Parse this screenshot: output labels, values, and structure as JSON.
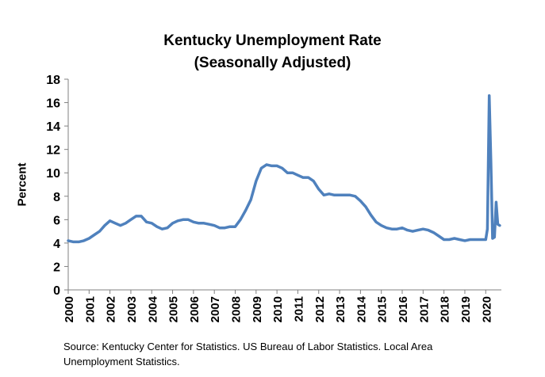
{
  "chart_data": {
    "type": "line",
    "title": [
      "Kentucky Unemployment Rate",
      "(Seasonally Adjusted)"
    ],
    "xlabel": "",
    "ylabel": "Percent",
    "xlim": [
      2000,
      2020.75
    ],
    "ylim": [
      0,
      18
    ],
    "yticks": [
      0,
      2,
      4,
      6,
      8,
      10,
      12,
      14,
      16,
      18
    ],
    "xticks": [
      "2000",
      "2001",
      "2002",
      "2003",
      "2004",
      "2005",
      "2006",
      "2007",
      "2008",
      "2009",
      "2010",
      "2011",
      "2012",
      "2013",
      "2014",
      "2015",
      "2016",
      "2017",
      "2018",
      "2019",
      "2020"
    ],
    "grid": false,
    "legend": "none",
    "series_color": "#4F81BD",
    "series": [
      {
        "x": [
          2000.0,
          2000.25,
          2000.5,
          2000.75,
          2001.0,
          2001.25,
          2001.5,
          2001.75,
          2002.0,
          2002.25,
          2002.5,
          2002.75,
          2003.0,
          2003.25,
          2003.5,
          2003.75,
          2004.0,
          2004.25,
          2004.5,
          2004.75,
          2005.0,
          2005.25,
          2005.5,
          2005.75,
          2006.0,
          2006.25,
          2006.5,
          2006.75,
          2007.0,
          2007.25,
          2007.5,
          2007.75,
          2008.0,
          2008.25,
          2008.5,
          2008.75,
          2009.0,
          2009.25,
          2009.5,
          2009.75,
          2010.0,
          2010.25,
          2010.5,
          2010.75,
          2011.0,
          2011.25,
          2011.5,
          2011.75,
          2012.0,
          2012.25,
          2012.5,
          2012.75,
          2013.0,
          2013.25,
          2013.5,
          2013.75,
          2014.0,
          2014.25,
          2014.5,
          2014.75,
          2015.0,
          2015.25,
          2015.5,
          2015.75,
          2016.0,
          2016.25,
          2016.5,
          2016.75,
          2017.0,
          2017.25,
          2017.5,
          2017.75,
          2018.0,
          2018.25,
          2018.5,
          2018.75,
          2019.0,
          2019.25,
          2019.5,
          2019.75,
          2020.0,
          2020.08,
          2020.17,
          2020.25,
          2020.33,
          2020.42,
          2020.5,
          2020.58,
          2020.67
        ],
        "values": [
          4.2,
          4.1,
          4.1,
          4.2,
          4.4,
          4.7,
          5.0,
          5.5,
          5.9,
          5.7,
          5.5,
          5.7,
          6.0,
          6.3,
          6.3,
          5.8,
          5.7,
          5.4,
          5.2,
          5.3,
          5.7,
          5.9,
          6.0,
          6.0,
          5.8,
          5.7,
          5.7,
          5.6,
          5.5,
          5.3,
          5.3,
          5.4,
          5.4,
          6.0,
          6.8,
          7.7,
          9.3,
          10.4,
          10.7,
          10.6,
          10.6,
          10.4,
          10.0,
          10.0,
          9.8,
          9.6,
          9.6,
          9.3,
          8.6,
          8.1,
          8.2,
          8.1,
          8.1,
          8.1,
          8.1,
          8.0,
          7.6,
          7.1,
          6.4,
          5.8,
          5.5,
          5.3,
          5.2,
          5.2,
          5.3,
          5.1,
          5.0,
          5.1,
          5.2,
          5.1,
          4.9,
          4.6,
          4.3,
          4.3,
          4.4,
          4.3,
          4.2,
          4.3,
          4.3,
          4.3,
          4.3,
          5.2,
          16.6,
          11.0,
          4.4,
          4.5,
          7.5,
          5.6,
          5.5
        ]
      }
    ]
  },
  "footer": {
    "source_line1": "Source: Kentucky Center for Statistics. US Bureau of Labor Statistics. Local Area",
    "source_line2": "Unemployment Statistics."
  }
}
